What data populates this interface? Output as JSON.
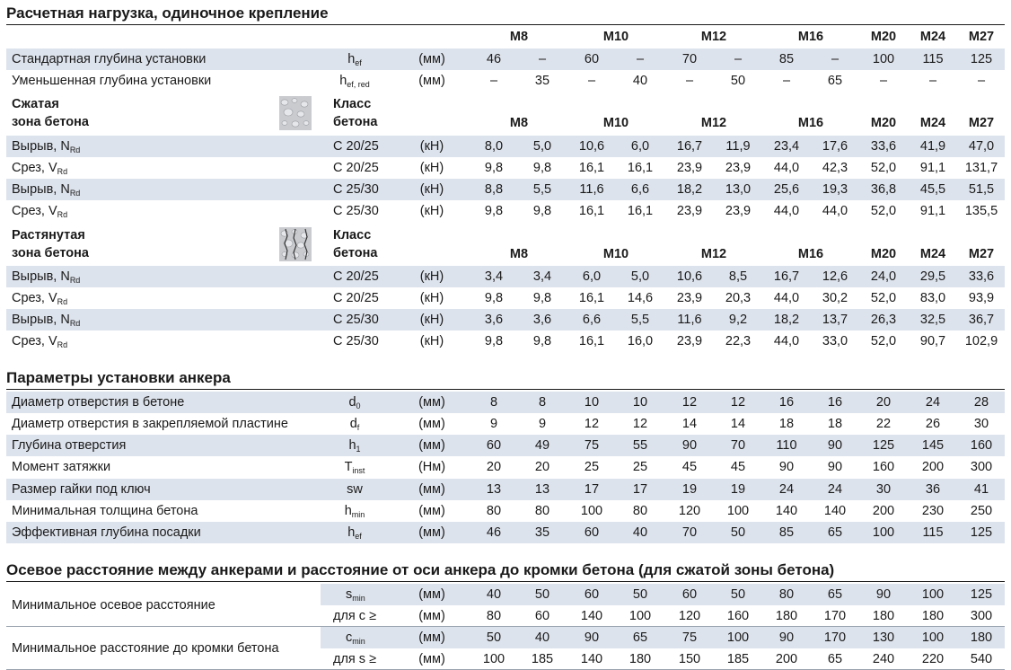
{
  "sections": {
    "load_title": "Расчетная нагрузка, одиночное крепление",
    "install_title": "Параметры установки анкера",
    "spacing_title": "Осевое расстояние между анкерами и расстояние от оси анкера до кромки бетона (для сжатой зоны бетона)"
  },
  "sizes": [
    "M8",
    "M10",
    "M12",
    "M16",
    "M20",
    "M24",
    "M27"
  ],
  "depth_rows": [
    {
      "label": "Стандартная глубина установки",
      "sym": "h",
      "sub": "ef",
      "unit": "(мм)",
      "values": [
        "46",
        "–",
        "60",
        "–",
        "70",
        "–",
        "85",
        "–",
        "100",
        "115",
        "125"
      ]
    },
    {
      "label": "Уменьшенная глубина установки",
      "sym": "h",
      "sub": "ef, red",
      "unit": "(мм)",
      "values": [
        "–",
        "35",
        "–",
        "40",
        "–",
        "50",
        "–",
        "65",
        "–",
        "–",
        "–"
      ]
    }
  ],
  "compressed": {
    "zone": "Сжатая\nзона бетона",
    "class_label": "Класс\nбетона",
    "rows": [
      {
        "label": "Вырыв, N",
        "sub": "Rd",
        "cls": "C 20/25",
        "unit": "(кН)",
        "values": [
          "8,0",
          "5,0",
          "10,6",
          "6,0",
          "16,7",
          "11,9",
          "23,4",
          "17,6",
          "33,6",
          "41,9",
          "47,0"
        ]
      },
      {
        "label": "Срез, V",
        "sub": "Rd",
        "cls": "C 20/25",
        "unit": "(кН)",
        "values": [
          "9,8",
          "9,8",
          "16,1",
          "16,1",
          "23,9",
          "23,9",
          "44,0",
          "42,3",
          "52,0",
          "91,1",
          "131,7"
        ]
      },
      {
        "label": "Вырыв, N",
        "sub": "Rd",
        "cls": "C 25/30",
        "unit": "(кН)",
        "values": [
          "8,8",
          "5,5",
          "11,6",
          "6,6",
          "18,2",
          "13,0",
          "25,6",
          "19,3",
          "36,8",
          "45,5",
          "51,5"
        ]
      },
      {
        "label": "Срез, V",
        "sub": "Rd",
        "cls": "C 25/30",
        "unit": "(кН)",
        "values": [
          "9,8",
          "9,8",
          "16,1",
          "16,1",
          "23,9",
          "23,9",
          "44,0",
          "44,0",
          "52,0",
          "91,1",
          "135,5"
        ]
      }
    ]
  },
  "tensile": {
    "zone": "Растянутая\nзона бетона",
    "class_label": "Класс\nбетона",
    "rows": [
      {
        "label": "Вырыв, N",
        "sub": "Rd",
        "cls": "C 20/25",
        "unit": "(кН)",
        "values": [
          "3,4",
          "3,4",
          "6,0",
          "5,0",
          "10,6",
          "8,5",
          "16,7",
          "12,6",
          "24,0",
          "29,5",
          "33,6"
        ]
      },
      {
        "label": "Срез, V",
        "sub": "Rd",
        "cls": "C 20/25",
        "unit": "(кН)",
        "values": [
          "9,8",
          "9,8",
          "16,1",
          "14,6",
          "23,9",
          "20,3",
          "44,0",
          "30,2",
          "52,0",
          "83,0",
          "93,9"
        ]
      },
      {
        "label": "Вырыв, N",
        "sub": "Rd",
        "cls": "C 25/30",
        "unit": "(кН)",
        "values": [
          "3,6",
          "3,6",
          "6,6",
          "5,5",
          "11,6",
          "9,2",
          "18,2",
          "13,7",
          "26,3",
          "32,5",
          "36,7"
        ]
      },
      {
        "label": "Срез, V",
        "sub": "Rd",
        "cls": "C 25/30",
        "unit": "(кН)",
        "values": [
          "9,8",
          "9,8",
          "16,1",
          "16,0",
          "23,9",
          "22,3",
          "44,0",
          "33,0",
          "52,0",
          "90,7",
          "102,9"
        ]
      }
    ]
  },
  "install_rows": [
    {
      "label": "Диаметр отверстия в бетоне",
      "sym": "d",
      "sub": "0",
      "unit": "(мм)",
      "values": [
        "8",
        "8",
        "10",
        "10",
        "12",
        "12",
        "16",
        "16",
        "20",
        "24",
        "28"
      ]
    },
    {
      "label": "Диаметр отверстия в закрепляемой пластине",
      "sym": "d",
      "sub": "f",
      "unit": "(мм)",
      "values": [
        "9",
        "9",
        "12",
        "12",
        "14",
        "14",
        "18",
        "18",
        "22",
        "26",
        "30"
      ]
    },
    {
      "label": "Глубина отверстия",
      "sym": "h",
      "sub": "1",
      "unit": "(мм)",
      "values": [
        "60",
        "49",
        "75",
        "55",
        "90",
        "70",
        "110",
        "90",
        "125",
        "145",
        "160"
      ]
    },
    {
      "label": "Момент затяжки",
      "sym": "T",
      "sub": "inst",
      "unit": "(Нм)",
      "values": [
        "20",
        "20",
        "25",
        "25",
        "45",
        "45",
        "90",
        "90",
        "160",
        "200",
        "300"
      ]
    },
    {
      "label": "Размер гайки под ключ",
      "sym": "sw",
      "sub": "",
      "unit": "(мм)",
      "values": [
        "13",
        "13",
        "17",
        "17",
        "19",
        "19",
        "24",
        "24",
        "30",
        "36",
        "41"
      ]
    },
    {
      "label": "Минимальная толщина бетона",
      "sym": "h",
      "sub": "min",
      "unit": "(мм)",
      "values": [
        "80",
        "80",
        "100",
        "80",
        "120",
        "100",
        "140",
        "140",
        "200",
        "230",
        "250"
      ]
    },
    {
      "label": "Эффективная глубина посадки",
      "sym": "h",
      "sub": "ef",
      "unit": "(мм)",
      "values": [
        "46",
        "35",
        "60",
        "40",
        "70",
        "50",
        "85",
        "65",
        "100",
        "115",
        "125"
      ]
    }
  ],
  "spacing_groups": [
    {
      "label": "Минимальное осевое расстояние",
      "rows": [
        {
          "sym": "s",
          "sub": "min",
          "unit": "(мм)",
          "values": [
            "40",
            "50",
            "60",
            "50",
            "60",
            "50",
            "80",
            "65",
            "90",
            "100",
            "125"
          ]
        },
        {
          "sym": "для c ≥",
          "sub": "",
          "unit": "(мм)",
          "values": [
            "80",
            "60",
            "140",
            "100",
            "120",
            "160",
            "180",
            "170",
            "180",
            "180",
            "300"
          ]
        }
      ]
    },
    {
      "label": "Минимальное расстояние до кромки бетона",
      "rows": [
        {
          "sym": "c",
          "sub": "min",
          "unit": "(мм)",
          "values": [
            "50",
            "40",
            "90",
            "65",
            "75",
            "100",
            "90",
            "170",
            "130",
            "100",
            "180"
          ]
        },
        {
          "sym": "для s ≥",
          "sub": "",
          "unit": "(мм)",
          "values": [
            "100",
            "185",
            "140",
            "180",
            "150",
            "185",
            "200",
            "65",
            "240",
            "220",
            "540"
          ]
        }
      ]
    }
  ],
  "colors": {
    "row_shade": "#dde3ec",
    "text": "#1a1a1a"
  }
}
